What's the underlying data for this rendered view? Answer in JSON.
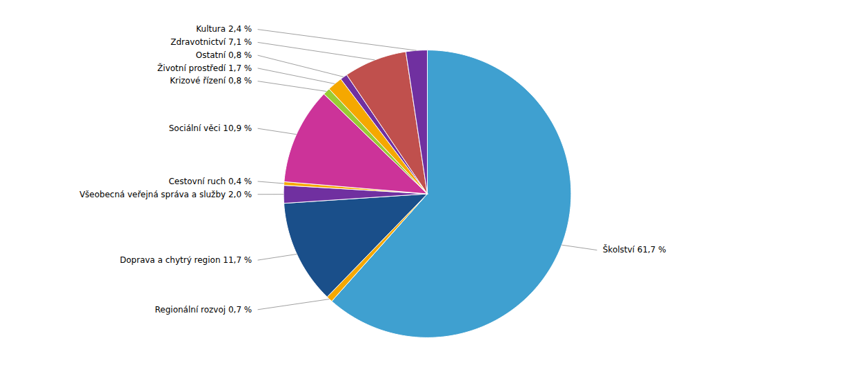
{
  "chart_data": {
    "type": "pie",
    "categories": [
      "Školství 61,7 %",
      "Regionální rozvoj 0,7 %",
      "Doprava a chytrý region 11,7 %",
      "Všeobecná veřejná správa a služby 2,0 %",
      "Cestovní ruch 0,4 %",
      "Sociální věci 10,9 %",
      "Krizové řízení 0,8 %",
      "Životní prostředí 1,7 %",
      "Ostatní 0,8 %",
      "Zdravotnictví 7,1 %",
      "Kultura 2,4 %"
    ],
    "values": [
      61.7,
      0.7,
      11.7,
      2.0,
      0.4,
      10.9,
      0.8,
      1.7,
      0.8,
      7.1,
      2.4
    ],
    "colors": [
      "#3fa0d0",
      "#f5a800",
      "#1a4f8a",
      "#7030a0",
      "#f5a800",
      "#cc3399",
      "#99cc33",
      "#f5a800",
      "#7030a0",
      "#c0504d",
      "#7030a0"
    ]
  }
}
